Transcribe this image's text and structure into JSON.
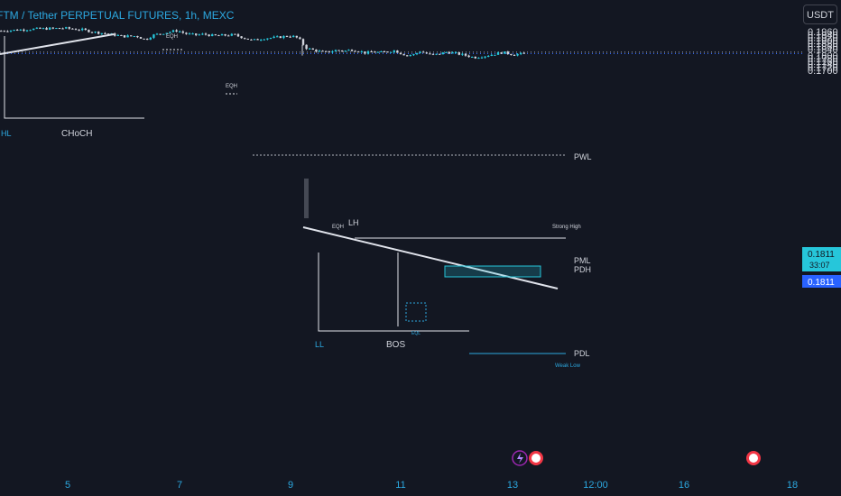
{
  "colors": {
    "background": "#131722",
    "up": "#26c6da",
    "down": "#d1d4dc",
    "accent": "#2ca8e0",
    "line": "#e0e3eb",
    "price_badge": "#2962ff"
  },
  "chart_data": {
    "type": "candlestick",
    "title": "FTM / Tether PERPETUAL FUTURES, 1h, MEXC",
    "currency": "USDT",
    "ylim": [
      0.169,
      0.1985
    ],
    "y_ticks": [
      "0.1960",
      "0.1940",
      "0.1920",
      "0.1900",
      "0.1880",
      "0.1860",
      "0.1840",
      "0.1800",
      "0.1780",
      "0.1760",
      "0.1740",
      "0.1720",
      "0.1700"
    ],
    "x_ticks": [
      "5",
      "7",
      "9",
      "11",
      "13",
      "12:00",
      "16",
      "18"
    ],
    "current_price": "0.1811",
    "countdown": "33:07",
    "price_path": [
      [
        0,
        0.1965
      ],
      [
        40,
        0.1978
      ],
      [
        70,
        0.1983
      ],
      [
        90,
        0.1972
      ],
      [
        105,
        0.1955
      ],
      [
        118,
        0.1945
      ],
      [
        135,
        0.1928
      ],
      [
        150,
        0.193
      ],
      [
        160,
        0.1905
      ],
      [
        168,
        0.1935
      ],
      [
        180,
        0.195
      ],
      [
        195,
        0.1967
      ],
      [
        205,
        0.1945
      ],
      [
        215,
        0.1937
      ],
      [
        225,
        0.1942
      ],
      [
        235,
        0.1932
      ],
      [
        248,
        0.1935
      ],
      [
        258,
        0.1938
      ],
      [
        268,
        0.192
      ],
      [
        278,
        0.19
      ],
      [
        292,
        0.1915
      ],
      [
        305,
        0.192
      ],
      [
        318,
        0.193
      ],
      [
        326,
        0.1925
      ],
      [
        330,
        0.191
      ],
      [
        334,
        0.1885
      ],
      [
        336,
        0.1855
      ],
      [
        340,
        0.1845
      ],
      [
        350,
        0.183
      ],
      [
        358,
        0.182
      ],
      [
        365,
        0.1825
      ],
      [
        372,
        0.1835
      ],
      [
        380,
        0.1828
      ],
      [
        388,
        0.1838
      ],
      [
        396,
        0.183
      ],
      [
        404,
        0.1815
      ],
      [
        412,
        0.1825
      ],
      [
        420,
        0.1818
      ],
      [
        428,
        0.1825
      ],
      [
        436,
        0.1832
      ],
      [
        444,
        0.181
      ],
      [
        450,
        0.18
      ],
      [
        458,
        0.1805
      ],
      [
        464,
        0.1828
      ],
      [
        470,
        0.1815
      ],
      [
        478,
        0.18
      ],
      [
        486,
        0.181
      ],
      [
        494,
        0.1822
      ],
      [
        502,
        0.1815
      ],
      [
        510,
        0.1805
      ],
      [
        518,
        0.1795
      ],
      [
        524,
        0.1785
      ],
      [
        532,
        0.1792
      ],
      [
        540,
        0.18
      ],
      [
        548,
        0.181
      ],
      [
        556,
        0.182
      ],
      [
        562,
        0.1812
      ],
      [
        568,
        0.1805
      ],
      [
        574,
        0.1808
      ],
      [
        580,
        0.1811
      ]
    ],
    "series": [
      {
        "name": "PWL",
        "value": 0.1895
      },
      {
        "name": "PML",
        "value": 0.1821
      },
      {
        "name": "PDH",
        "value": 0.1815
      },
      {
        "name": "PDL",
        "value": 0.1762
      }
    ],
    "annotations": [
      {
        "text": "HL",
        "value": 0.191
      },
      {
        "text": "CHoCH",
        "value": 0.191
      },
      {
        "text": "EQH",
        "value": 0.1975
      },
      {
        "text": "EQH",
        "value": 0.1942
      },
      {
        "text": "EQH",
        "value": 0.1849
      },
      {
        "text": "LH",
        "value": 0.185
      },
      {
        "text": "Strong High",
        "value": 0.1848
      },
      {
        "text": "LL",
        "value": 0.1771
      },
      {
        "text": "BOS",
        "value": 0.1771
      },
      {
        "text": "EQL",
        "value": 0.178
      },
      {
        "text": "Weak Low",
        "value": 0.1756
      }
    ]
  }
}
